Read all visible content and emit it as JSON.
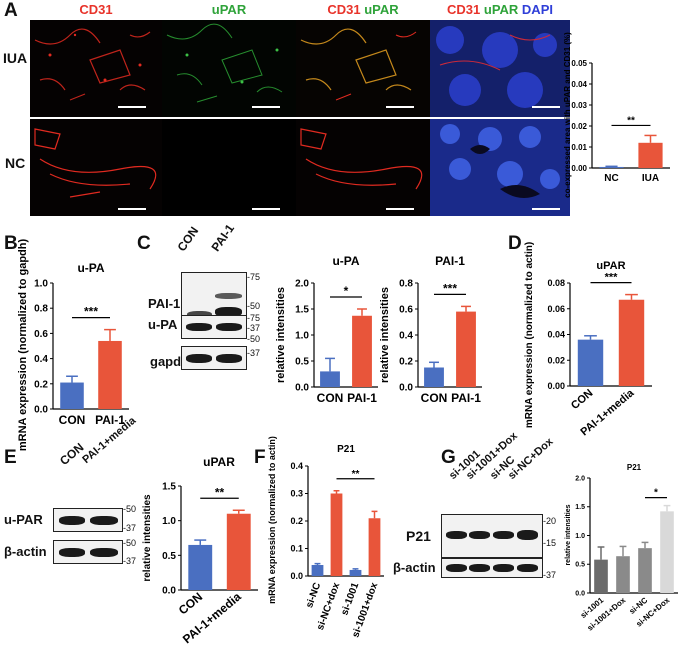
{
  "panel_letters": [
    "A",
    "B",
    "C",
    "D",
    "E",
    "F",
    "G"
  ],
  "panelA": {
    "col_headers": [
      {
        "parts": [
          {
            "t": "CD31",
            "c": "#e8332a"
          }
        ]
      },
      {
        "parts": [
          {
            "t": "uPAR",
            "c": "#2fa33a"
          }
        ]
      },
      {
        "parts": [
          {
            "t": "CD31 ",
            "c": "#e8332a"
          },
          {
            "t": "uPAR",
            "c": "#2fa33a"
          }
        ]
      },
      {
        "parts": [
          {
            "t": "CD31 ",
            "c": "#e8332a"
          },
          {
            "t": "uPAR ",
            "c": "#2fa33a"
          },
          {
            "t": "DAPI",
            "c": "#2f3fd8"
          }
        ]
      }
    ],
    "row_labels": [
      "IUA",
      "NC"
    ]
  },
  "panelC_blot": {
    "lanes": [
      "CON",
      "PAI-1"
    ],
    "rows": [
      "PAI-1",
      "u-PA",
      "gapdh"
    ],
    "markers": [
      "75",
      "50",
      "37",
      "75",
      "50",
      "37"
    ]
  },
  "panelE_blot": {
    "lanes": [
      "CON",
      "PAI-1+media"
    ],
    "rows": [
      "u-PAR",
      "β-actin"
    ],
    "markers": [
      "50",
      "37",
      "50",
      "37"
    ]
  },
  "panelG_blot": {
    "lanes": [
      "si-1001",
      "si-1001+Dox",
      "si-NC",
      "si-NC+Dox"
    ],
    "rows": [
      "P21",
      "β-actin"
    ],
    "markers": [
      "20",
      "15",
      "37"
    ]
  },
  "colors": {
    "blue": "#4a6fc1",
    "red": "#e8553a",
    "gray_dark": "#6b6b6b",
    "gray_mid": "#8a8a8a",
    "gray_light": "#d9d9d9"
  },
  "chart_data": [
    {
      "id": "A",
      "type": "bar",
      "title": "",
      "ylabel": "co-expressed area with uPAR and CD31 (%)",
      "categories": [
        "NC",
        "IUA"
      ],
      "values": [
        0.0005,
        0.012
      ],
      "errors": [
        0.0003,
        0.0035
      ],
      "ylim": [
        0,
        0.05
      ],
      "yticks": [
        "0.00",
        "0.01",
        "0.02",
        "0.03",
        "0.04",
        "0.05"
      ],
      "sig": "**"
    },
    {
      "id": "B",
      "type": "bar",
      "title": "u-PA",
      "ylabel": "mRNA expression (normalized to gapdh)",
      "categories": [
        "CON",
        "PAI-1"
      ],
      "values": [
        0.21,
        0.54
      ],
      "errors": [
        0.05,
        0.09
      ],
      "ylim": [
        0,
        1.0
      ],
      "yticks": [
        "0.0",
        "0.2",
        "0.4",
        "0.6",
        "0.8",
        "1.0"
      ],
      "sig": "***"
    },
    {
      "id": "C1",
      "type": "bar",
      "title": "u-PA",
      "ylabel": "relative intensities",
      "categories": [
        "CON",
        "PAI-1"
      ],
      "values": [
        0.3,
        1.37
      ],
      "errors": [
        0.25,
        0.13
      ],
      "ylim": [
        0,
        2.0
      ],
      "yticks": [
        "0.0",
        "0.5",
        "1.0",
        "1.5",
        "2.0"
      ],
      "sig": "*"
    },
    {
      "id": "C2",
      "type": "bar",
      "title": "PAI-1",
      "ylabel": "relative intensities",
      "categories": [
        "CON",
        "PAI-1"
      ],
      "values": [
        0.15,
        0.58
      ],
      "errors": [
        0.04,
        0.04
      ],
      "ylim": [
        0,
        0.8
      ],
      "yticks": [
        "0.0",
        "0.2",
        "0.4",
        "0.6",
        "0.8"
      ],
      "sig": "***"
    },
    {
      "id": "D",
      "type": "bar",
      "title": "uPAR",
      "ylabel": "mRNA expression (normalized to actin)",
      "categories": [
        "CON",
        "PAI-1+media"
      ],
      "values": [
        0.036,
        0.067
      ],
      "errors": [
        0.003,
        0.004
      ],
      "ylim": [
        0,
        0.08
      ],
      "yticks": [
        "0.00",
        "0.02",
        "0.04",
        "0.06",
        "0.08"
      ],
      "sig": "***"
    },
    {
      "id": "E",
      "type": "bar",
      "title": "uPAR",
      "ylabel": "relative intensities",
      "categories": [
        "CON",
        "PAI-1+media"
      ],
      "values": [
        0.65,
        1.1
      ],
      "errors": [
        0.07,
        0.05
      ],
      "ylim": [
        0,
        1.5
      ],
      "yticks": [
        "0.0",
        "0.5",
        "1.0",
        "1.5"
      ],
      "sig": "**"
    },
    {
      "id": "F",
      "type": "bar",
      "title": "P21",
      "ylabel": "mRNA expression (normalized to actin)",
      "categories": [
        "si-NC",
        "si-NC+dox",
        "si-1001",
        "si-1001+dox"
      ],
      "values": [
        0.04,
        0.3,
        0.022,
        0.21
      ],
      "errors": [
        0.005,
        0.01,
        0.004,
        0.025
      ],
      "ylim": [
        0,
        0.4
      ],
      "yticks": [
        "0.0",
        "0.1",
        "0.2",
        "0.3",
        "0.4"
      ],
      "sig": "**"
    },
    {
      "id": "G",
      "type": "bar",
      "title": "P21",
      "ylabel": "relative intensities",
      "categories": [
        "si-1001",
        "si-1001+Dox",
        "si-NC",
        "si-NC+Dox"
      ],
      "values": [
        0.58,
        0.64,
        0.78,
        1.42
      ],
      "errors": [
        0.22,
        0.17,
        0.1,
        0.1
      ],
      "ylim": [
        0,
        2.0
      ],
      "yticks": [
        "0.0",
        "0.5",
        "1.0",
        "1.5",
        "2.0"
      ],
      "sig": "*"
    }
  ]
}
